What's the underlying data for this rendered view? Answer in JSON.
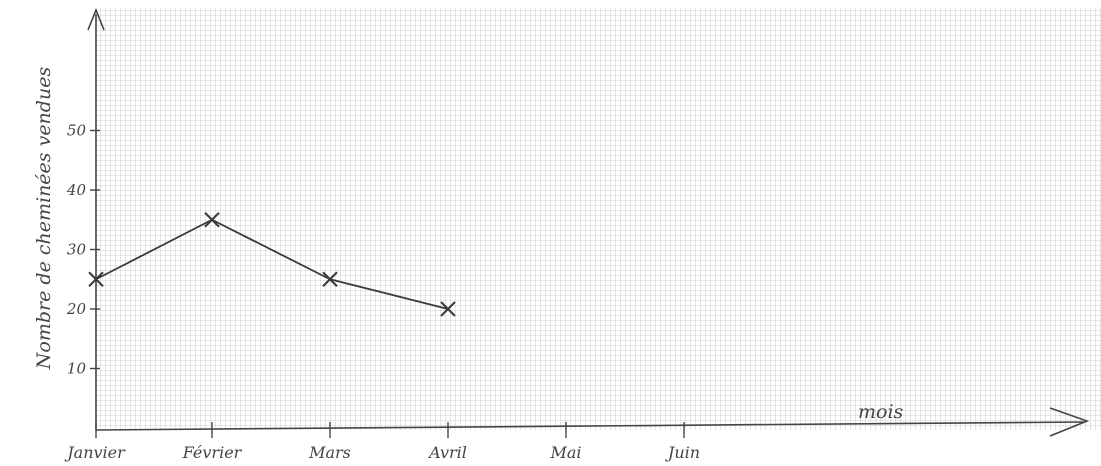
{
  "chart_data": {
    "type": "line",
    "title": "",
    "xlabel": "mois",
    "ylabel": "Nombre de cheminées vendues",
    "categories": [
      "Janvier",
      "Février",
      "Mars",
      "Avril",
      "Mai",
      "Juin"
    ],
    "values": [
      25,
      35,
      25,
      20,
      null,
      null
    ],
    "yticks": [
      10,
      20,
      30,
      40,
      50
    ],
    "ylim": [
      0,
      60
    ],
    "grid": true,
    "marker": "cross",
    "colors": {
      "line": "#3a3a3a",
      "grid": "#9a9a9a",
      "axis": "#444444"
    }
  }
}
